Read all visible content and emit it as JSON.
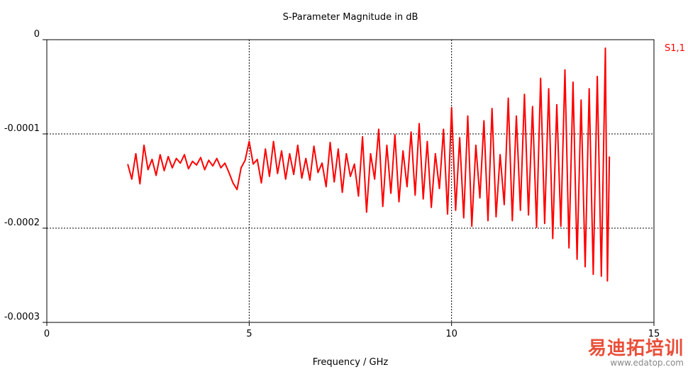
{
  "chart_data": {
    "type": "line",
    "title": "S-Parameter Magnitude in dB",
    "xlabel": "Frequency / GHz",
    "ylabel": "",
    "xlim": [
      0,
      15
    ],
    "ylim": [
      -0.0003,
      0
    ],
    "x_ticks": [
      "0",
      "5",
      "10",
      "15"
    ],
    "y_ticks": [
      "0",
      "-0.0001",
      "-0.0002",
      "-0.0003"
    ],
    "grid": true,
    "legend_position": "right",
    "series": [
      {
        "name": "S1,1",
        "color": "#ff0000",
        "x": [
          2.0,
          2.1,
          2.2,
          2.3,
          2.4,
          2.5,
          2.6,
          2.7,
          2.8,
          2.9,
          3.0,
          3.1,
          3.2,
          3.3,
          3.4,
          3.5,
          3.6,
          3.7,
          3.8,
          3.9,
          4.0,
          4.1,
          4.2,
          4.3,
          4.4,
          4.5,
          4.6,
          4.7,
          4.8,
          4.9,
          5.0,
          5.1,
          5.2,
          5.3,
          5.4,
          5.5,
          5.6,
          5.7,
          5.8,
          5.9,
          6.0,
          6.1,
          6.2,
          6.3,
          6.4,
          6.5,
          6.6,
          6.7,
          6.8,
          6.9,
          7.0,
          7.1,
          7.2,
          7.3,
          7.4,
          7.5,
          7.6,
          7.7,
          7.8,
          7.9,
          8.0,
          8.1,
          8.2,
          8.3,
          8.4,
          8.5,
          8.6,
          8.7,
          8.8,
          8.9,
          9.0,
          9.1,
          9.2,
          9.3,
          9.4,
          9.5,
          9.6,
          9.7,
          9.8,
          9.9,
          10.0,
          10.1,
          10.2,
          10.3,
          10.4,
          10.5,
          10.6,
          10.7,
          10.8,
          10.9,
          11.0,
          11.1,
          11.2,
          11.3,
          11.4,
          11.5,
          11.6,
          11.7,
          11.8,
          11.9,
          12.0,
          12.1,
          12.2,
          12.3,
          12.4,
          12.5,
          12.6,
          12.7,
          12.8,
          12.9,
          13.0,
          13.1,
          13.2,
          13.3,
          13.4,
          13.5,
          13.6,
          13.7,
          13.8,
          13.85,
          13.9
        ],
        "y": [
          -0.000132,
          -0.000148,
          -0.000121,
          -0.000153,
          -0.000112,
          -0.000138,
          -0.000127,
          -0.000144,
          -0.000122,
          -0.000139,
          -0.000124,
          -0.000136,
          -0.000126,
          -0.000131,
          -0.000122,
          -0.000137,
          -0.000129,
          -0.000133,
          -0.000125,
          -0.000138,
          -0.000128,
          -0.000134,
          -0.000126,
          -0.000136,
          -0.000131,
          -0.000141,
          -0.000152,
          -0.000159,
          -0.000136,
          -0.000128,
          -0.000108,
          -0.000132,
          -0.000127,
          -0.000152,
          -0.000116,
          -0.000145,
          -0.000108,
          -0.000142,
          -0.000118,
          -0.000148,
          -0.000121,
          -0.000143,
          -0.000112,
          -0.000147,
          -0.000126,
          -0.000149,
          -0.000113,
          -0.000141,
          -0.000131,
          -0.000156,
          -0.000109,
          -0.000151,
          -0.000116,
          -0.000162,
          -0.000121,
          -0.000145,
          -0.000132,
          -0.000166,
          -0.000103,
          -0.000183,
          -0.000121,
          -0.000148,
          -9.5e-05,
          -0.000177,
          -0.000112,
          -0.000163,
          -0.000101,
          -0.000172,
          -0.000118,
          -0.000156,
          -9.8e-05,
          -0.000165,
          -8.9e-05,
          -0.000169,
          -0.000108,
          -0.000178,
          -0.000121,
          -0.000158,
          -9.5e-05,
          -0.000185,
          -7.2e-05,
          -0.000181,
          -0.000104,
          -0.000189,
          -8.1e-05,
          -0.000198,
          -0.000112,
          -0.000168,
          -8.6e-05,
          -0.000192,
          -7.3e-05,
          -0.000188,
          -0.000122,
          -0.000175,
          -6.2e-05,
          -0.000192,
          -8.1e-05,
          -0.000181,
          -5.8e-05,
          -0.000186,
          -7.1e-05,
          -0.000199,
          -4.1e-05,
          -0.000195,
          -5.2e-05,
          -0.000211,
          -6.9e-05,
          -0.000198,
          -3.2e-05,
          -0.000221,
          -4.5e-05,
          -0.000233,
          -6.4e-05,
          -0.000241,
          -5.2e-05,
          -0.000249,
          -3.9e-05,
          -0.000251,
          -9e-06,
          -0.000256,
          -0.000124
        ]
      }
    ]
  },
  "watermark": {
    "brand": "易迪拓培训",
    "url": "www.edatop.com"
  }
}
